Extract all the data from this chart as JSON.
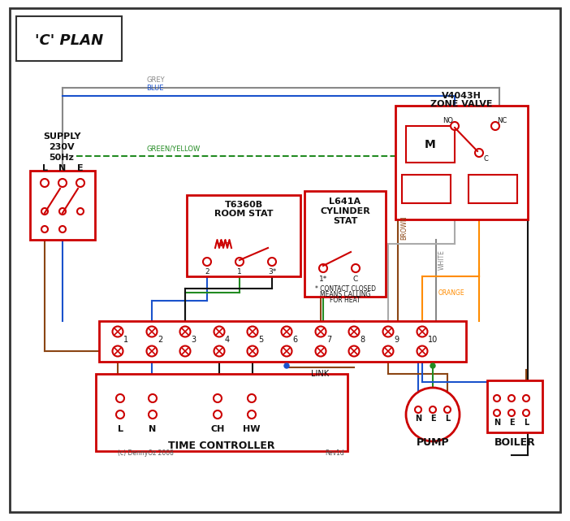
{
  "title": "'C' PLAN",
  "bg_color": "#ffffff",
  "border_color": "#222222",
  "red": "#cc0000",
  "dark_red": "#cc0000",
  "blue": "#1a52cc",
  "grey": "#888888",
  "green": "#228b22",
  "brown": "#8b4513",
  "orange": "#ff8c00",
  "black": "#111111",
  "white_wire": "#aaaaaa",
  "pink_dashed": "#ff6699",
  "supply_text": [
    "SUPPLY",
    "230V",
    "50Hz"
  ],
  "lne_labels": [
    "L",
    "N",
    "E"
  ],
  "terminal_labels": [
    "1",
    "2",
    "3",
    "4",
    "5",
    "6",
    "7",
    "8",
    "9",
    "10"
  ],
  "time_ctrl_label": "TIME CONTROLLER",
  "time_ctrl_sub": [
    "L",
    "N",
    "CH",
    "HW"
  ],
  "pump_label": "PUMP",
  "boiler_label": "BOILER",
  "pump_sub": [
    "N",
    "E",
    "L"
  ],
  "boiler_sub": [
    "N",
    "E",
    "L"
  ],
  "zone_valve_label": [
    "V4043H",
    "ZONE VALVE"
  ],
  "room_stat_label": [
    "T6360B",
    "ROOM STAT"
  ],
  "cyl_stat_label": [
    "L641A",
    "CYLINDER",
    "STAT"
  ],
  "link_label": "LINK",
  "footnote": "* CONTACT CLOSED\n  MEANS CALLING\n  FOR HEAT",
  "copyright": "(c) DennyOz 2008",
  "rev": "Rev1d"
}
